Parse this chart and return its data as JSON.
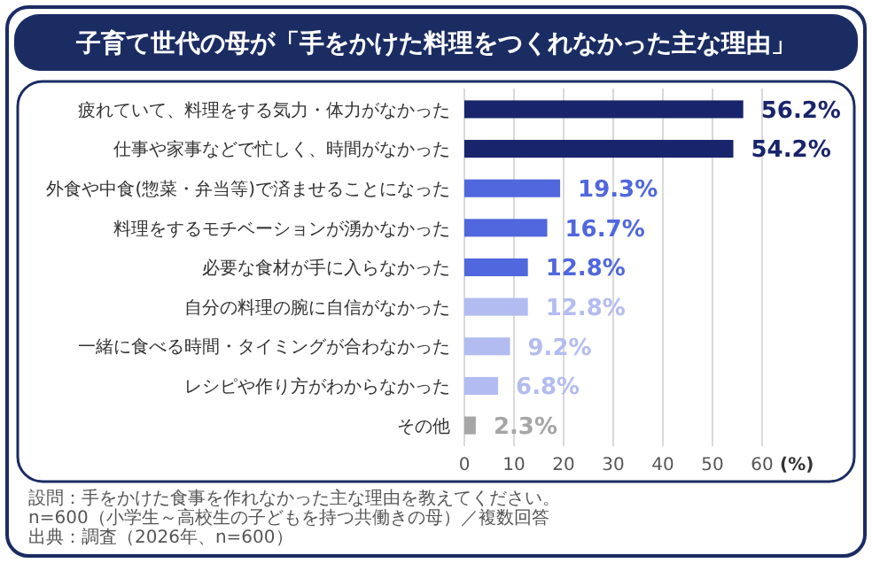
{
  "chart_data": {
    "type": "bar",
    "orientation": "horizontal",
    "title": "子育て世代の母が「手をかけた料理をつくれなかった主な理由」",
    "categories": [
      "疲れていて、料理をする気力・体力がなかった",
      "仕事や家事などで忙しく、時間がなかった",
      "外食や中食(惣菜・弁当等)で済ませることになった",
      "料理をするモチベーションが湧かなかった",
      "必要な食材が手に入らなかった",
      "自分の料理の腕に自信がなかった",
      "一緒に食べる時間・タイミングが合わなかった",
      "レシピや作り方がわからなかった",
      "その他"
    ],
    "values": [
      56.2,
      54.2,
      19.3,
      16.7,
      12.8,
      12.8,
      9.2,
      6.8,
      2.3
    ],
    "value_labels": [
      "56.2%",
      "54.2%",
      "19.3%",
      "16.7%",
      "12.8%",
      "12.8%",
      "9.2%",
      "6.8%",
      "2.3%"
    ],
    "colors": [
      "#18246b",
      "#18246b",
      "#5067dd",
      "#5067dd",
      "#5067dd",
      "#b3bcf0",
      "#b3bcf0",
      "#b3bcf0",
      "#a6a6a6"
    ],
    "xlabel": "(%)",
    "xlim": [
      0,
      60
    ],
    "xticks": [
      0,
      10,
      20,
      30,
      40,
      50,
      60
    ],
    "grid": "x",
    "annotations": [
      "設問：手をかけた食事を作れなかった主な理由を教えてください。",
      "n=600（小学生～高校生の子どもを持つ共働きの母）／複数回答",
      "出典：調査（2026年、n=600）"
    ]
  }
}
